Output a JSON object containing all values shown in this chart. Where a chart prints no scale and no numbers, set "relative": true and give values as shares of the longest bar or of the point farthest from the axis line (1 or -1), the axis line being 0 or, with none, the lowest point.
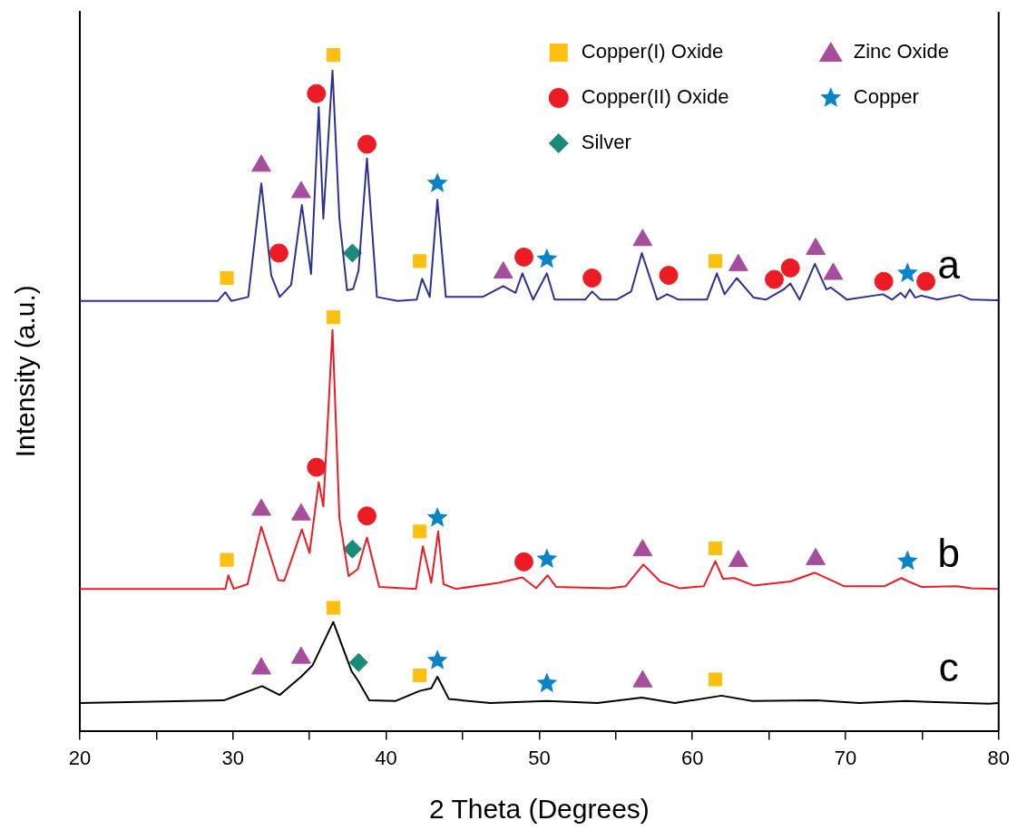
{
  "chart_data": {
    "type": "line",
    "relative": true,
    "xlabel": "2 Theta (Degrees)",
    "ylabel": "Intensity (a.u.)",
    "xlim": [
      20,
      80
    ],
    "xticks": [
      20,
      {
        "value": 25,
        "label": null
      },
      30,
      {
        "value": 35,
        "label": null
      },
      40,
      {
        "value": 45,
        "label": null
      },
      50,
      {
        "value": 55,
        "label": null
      },
      60,
      {
        "value": 65,
        "label": null
      },
      70,
      {
        "value": 75,
        "label": null
      },
      80
    ],
    "grid": false,
    "legend": "top right",
    "line_style": "solid",
    "series": [
      {
        "type": "line",
        "name": "a",
        "color": "#2e3192",
        "marker": "none",
        "x": [
          20,
          29.0,
          29.5,
          29.9,
          31.0,
          31.85,
          32.5,
          33.05,
          33.8,
          34.5,
          35.1,
          35.6,
          35.9,
          36.5,
          36.95,
          37.45,
          37.85,
          38.2,
          38.75,
          39.4,
          40.75,
          42.0,
          42.35,
          42.85,
          43.35,
          43.9,
          46.3,
          47.65,
          48.45,
          48.9,
          49.6,
          50.5,
          51.0,
          53.0,
          53.45,
          54.0,
          55.05,
          56.0,
          56.7,
          57.7,
          58.35,
          59.1,
          60.95,
          61.6,
          62.1,
          62.9,
          64.0,
          64.8,
          65.95,
          66.4,
          67.0,
          68.0,
          68.75,
          69.05,
          70.1,
          72.45,
          73.05,
          73.6,
          73.9,
          74.2,
          74.55,
          74.95,
          76.0,
          77.45,
          78.2,
          80
        ],
        "values": [
          0.636,
          0.636,
          0.649,
          0.636,
          0.642,
          0.81,
          0.674,
          0.642,
          0.66,
          0.778,
          0.676,
          0.923,
          0.758,
          0.977,
          0.758,
          0.652,
          0.654,
          0.681,
          0.847,
          0.642,
          0.636,
          0.638,
          0.669,
          0.642,
          0.786,
          0.642,
          0.642,
          0.658,
          0.648,
          0.677,
          0.638,
          0.677,
          0.638,
          0.638,
          0.65,
          0.638,
          0.638,
          0.65,
          0.707,
          0.638,
          0.646,
          0.638,
          0.638,
          0.677,
          0.646,
          0.67,
          0.641,
          0.638,
          0.653,
          0.662,
          0.638,
          0.691,
          0.653,
          0.656,
          0.638,
          0.646,
          0.638,
          0.648,
          0.641,
          0.653,
          0.641,
          0.644,
          0.638,
          0.645,
          0.638,
          0.637
        ]
      },
      {
        "type": "line",
        "name": "b",
        "color": "#ed1c24",
        "marker": "none",
        "x": [
          20,
          29.5,
          29.7,
          30.05,
          30.95,
          31.85,
          32.95,
          33.35,
          34.5,
          35.0,
          35.6,
          35.9,
          36.5,
          36.95,
          37.55,
          38.15,
          38.75,
          39.55,
          41.95,
          42.4,
          42.95,
          43.4,
          43.75,
          44.55,
          47.35,
          48.9,
          49.8,
          50.55,
          51.1,
          54.6,
          55.65,
          56.8,
          57.9,
          59.15,
          60.75,
          61.5,
          62.0,
          62.75,
          64.0,
          66.4,
          68.0,
          69.9,
          72.55,
          73.65,
          74.1,
          74.95,
          77.3,
          78.2,
          80
        ],
        "values": [
          0.21,
          0.21,
          0.23,
          0.21,
          0.217,
          0.302,
          0.223,
          0.222,
          0.298,
          0.263,
          0.368,
          0.332,
          0.593,
          0.315,
          0.229,
          0.239,
          0.286,
          0.213,
          0.21,
          0.273,
          0.219,
          0.295,
          0.217,
          0.21,
          0.219,
          0.227,
          0.211,
          0.23,
          0.213,
          0.211,
          0.214,
          0.246,
          0.221,
          0.211,
          0.214,
          0.251,
          0.225,
          0.226,
          0.215,
          0.221,
          0.234,
          0.214,
          0.214,
          0.226,
          0.221,
          0.213,
          0.214,
          0.211,
          0.21
        ]
      },
      {
        "type": "line",
        "name": "c",
        "color": "#000000",
        "marker": "none",
        "x": [
          20,
          29.4,
          31.9,
          33.05,
          34.45,
          35.2,
          36.55,
          37.75,
          38.2,
          38.9,
          40.6,
          42.2,
          42.95,
          43.35,
          44.1,
          46.8,
          50.5,
          53.8,
          56.7,
          58.85,
          61.9,
          63.9,
          68.1,
          70.9,
          73.95,
          79.35,
          80
        ],
        "values": [
          0.041,
          0.045,
          0.066,
          0.053,
          0.08,
          0.097,
          0.161,
          0.088,
          0.073,
          0.045,
          0.044,
          0.059,
          0.063,
          0.08,
          0.047,
          0.041,
          0.044,
          0.041,
          0.049,
          0.041,
          0.052,
          0.044,
          0.045,
          0.041,
          0.044,
          0.04,
          0.041
        ]
      },
      {
        "type": "scatter",
        "name": "Copper(I) Oxide",
        "color": "#fdc010",
        "marker": "square",
        "x": [
          29.6,
          36.55,
          42.2,
          61.5,
          29.6,
          36.55,
          42.2,
          61.5,
          36.55,
          42.2,
          61.5
        ],
        "values": [
          0.67,
          1.0,
          0.695,
          0.695,
          0.253,
          0.612,
          0.295,
          0.27,
          0.182,
          0.082,
          0.076
        ]
      },
      {
        "type": "scatter",
        "name": "Copper(II) Oxide",
        "color": "#ed1c24",
        "marker": "circle",
        "x": [
          35.45,
          33.0,
          38.75,
          49.0,
          53.45,
          58.45,
          65.35,
          66.4,
          72.5,
          75.25,
          35.45,
          38.75,
          49.0
        ],
        "values": [
          0.943,
          0.707,
          0.868,
          0.701,
          0.67,
          0.674,
          0.668,
          0.685,
          0.665,
          0.665,
          0.39,
          0.318,
          0.25
        ]
      },
      {
        "type": "scatter",
        "name": "Silver",
        "color": "#1b8a78",
        "marker": "diamond",
        "x": [
          37.8,
          37.8,
          38.2
        ],
        "values": [
          0.707,
          0.269,
          0.101
        ]
      },
      {
        "type": "scatter",
        "name": "Zinc Oxide",
        "color": "#a64d9c",
        "marker": "triangle",
        "x": [
          31.85,
          34.45,
          47.65,
          56.75,
          63.0,
          68.05,
          69.2,
          31.85,
          34.45,
          56.75,
          63.0,
          68.05,
          31.85,
          34.45,
          56.75
        ],
        "values": [
          0.836,
          0.797,
          0.678,
          0.726,
          0.689,
          0.713,
          0.676,
          0.327,
          0.32,
          0.267,
          0.251,
          0.254,
          0.092,
          0.108,
          0.073
        ]
      },
      {
        "type": "scatter",
        "name": "Copper",
        "color": "#0a83c9",
        "marker": "star",
        "x": [
          43.35,
          50.5,
          74.05,
          43.35,
          50.5,
          74.05,
          43.35,
          50.5
        ],
        "values": [
          0.81,
          0.698,
          0.677,
          0.315,
          0.254,
          0.251,
          0.104,
          0.07
        ]
      }
    ]
  }
}
